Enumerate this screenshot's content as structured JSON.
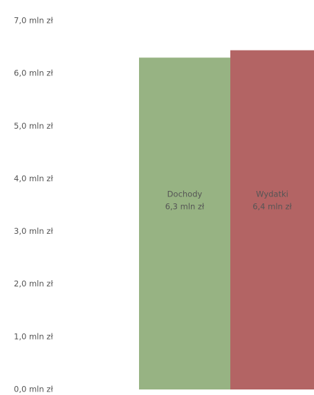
{
  "chart_data": {
    "type": "bar",
    "categories": [
      "Dochody",
      "Wydatki"
    ],
    "values": [
      6.3,
      6.44
    ],
    "value_labels": [
      "6,3 mln zł",
      "6,4 mln zł"
    ],
    "colors": [
      "#97b383",
      "#b36464"
    ],
    "ylim": [
      0,
      7
    ],
    "yticks": [
      {
        "value": 0,
        "label": "0,0 mln zł"
      },
      {
        "value": 1,
        "label": "1,0 mln zł"
      },
      {
        "value": 2,
        "label": "2,0 mln zł"
      },
      {
        "value": 3,
        "label": "3,0 mln zł"
      },
      {
        "value": 4,
        "label": "4,0 mln zł"
      },
      {
        "value": 5,
        "label": "5,0 mln zł"
      },
      {
        "value": 6,
        "label": "6,0 mln zł"
      },
      {
        "value": 7,
        "label": "7,0 mln zł"
      }
    ],
    "grid": false
  }
}
